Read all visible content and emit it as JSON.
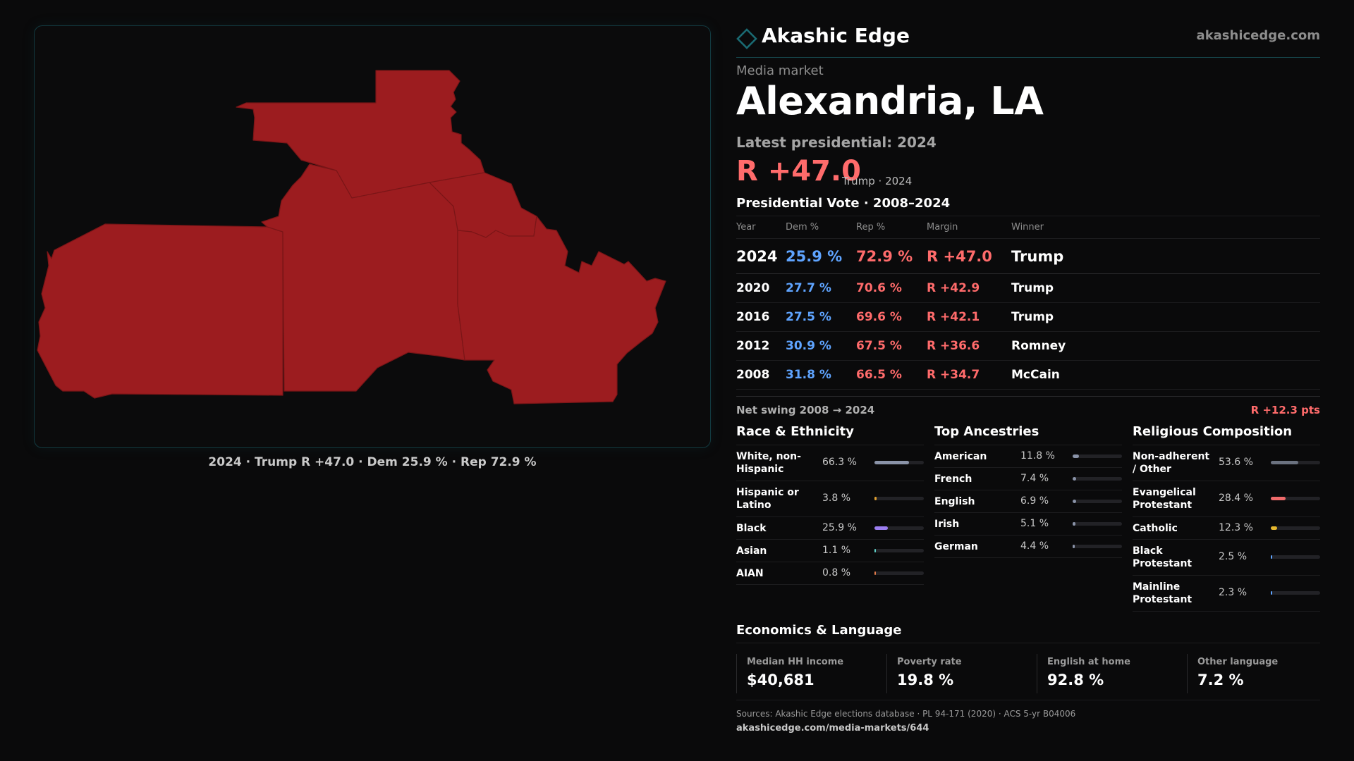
{
  "brand": {
    "name": "Akashic Edge",
    "url": "akashicedge.com"
  },
  "market": {
    "eyebrow": "Media market",
    "title": "Alexandria, LA",
    "latest_label": "Latest presidential: 2024",
    "headline_margin": "R +47.0",
    "headline_sub": "Trump · 2024"
  },
  "map": {
    "caption": "2024 · Trump R +47.0 · Dem 25.9 % · Rep 72.9 %",
    "fill_color": "#9c1c1f"
  },
  "vote": {
    "title": "Presidential Vote · 2008–2024",
    "headers": {
      "year": "Year",
      "dem": "Dem %",
      "rep": "Rep %",
      "margin": "Margin",
      "winner": "Winner"
    },
    "rows": [
      {
        "year": "2024",
        "dem": "25.9 %",
        "rep": "72.9 %",
        "margin": "R +47.0",
        "winner": "Trump"
      },
      {
        "year": "2020",
        "dem": "27.7 %",
        "rep": "70.6 %",
        "margin": "R +42.9",
        "winner": "Trump"
      },
      {
        "year": "2016",
        "dem": "27.5 %",
        "rep": "69.6 %",
        "margin": "R +42.1",
        "winner": "Trump"
      },
      {
        "year": "2012",
        "dem": "30.9 %",
        "rep": "67.5 %",
        "margin": "R +36.6",
        "winner": "Romney"
      },
      {
        "year": "2008",
        "dem": "31.8 %",
        "rep": "66.5 %",
        "margin": "R +34.7",
        "winner": "McCain"
      }
    ],
    "swing_label": "Net swing 2008 → 2024",
    "swing_value": "R +12.3 pts"
  },
  "race": {
    "title": "Race & Ethnicity",
    "items": [
      {
        "label": "White, non-Hispanic",
        "value": "66.3 %",
        "share": 0.663,
        "color": "#8a93a8"
      },
      {
        "label": "Hispanic or Latino",
        "value": "3.8 %",
        "share": 0.038,
        "color": "#e0a030"
      },
      {
        "label": "Black",
        "value": "25.9 %",
        "share": 0.259,
        "color": "#9b7ef0"
      },
      {
        "label": "Asian",
        "value": "1.1 %",
        "share": 0.011,
        "color": "#5fd0c8"
      },
      {
        "label": "AIAN",
        "value": "0.8 %",
        "share": 0.008,
        "color": "#e07a4a"
      }
    ]
  },
  "ancestry": {
    "title": "Top Ancestries",
    "items": [
      {
        "label": "American",
        "value": "11.8 %",
        "share": 0.118,
        "color": "#8a93a8"
      },
      {
        "label": "French",
        "value": "7.4 %",
        "share": 0.074,
        "color": "#8a93a8"
      },
      {
        "label": "English",
        "value": "6.9 %",
        "share": 0.069,
        "color": "#8a93a8"
      },
      {
        "label": "Irish",
        "value": "5.1 %",
        "share": 0.051,
        "color": "#8a93a8"
      },
      {
        "label": "German",
        "value": "4.4 %",
        "share": 0.044,
        "color": "#8a93a8"
      }
    ]
  },
  "religion": {
    "title": "Religious Composition",
    "items": [
      {
        "label": "Non-adherent / Other",
        "value": "53.6 %",
        "share": 0.536,
        "color": "#6b7280"
      },
      {
        "label": "Evangelical Protestant",
        "value": "28.4 %",
        "share": 0.284,
        "color": "#ef6b6b"
      },
      {
        "label": "Catholic",
        "value": "12.3 %",
        "share": 0.123,
        "color": "#e6b82e"
      },
      {
        "label": "Black Protestant",
        "value": "2.5 %",
        "share": 0.025,
        "color": "#5fa4ff"
      },
      {
        "label": "Mainline Protestant",
        "value": "2.3 %",
        "share": 0.023,
        "color": "#5fa4ff"
      }
    ]
  },
  "economics": {
    "title": "Economics & Language",
    "cards": [
      {
        "label": "Median HH income",
        "value": "$40,681"
      },
      {
        "label": "Poverty rate",
        "value": "19.8 %"
      },
      {
        "label": "English at home",
        "value": "92.8 %"
      },
      {
        "label": "Other language",
        "value": "7.2 %"
      }
    ]
  },
  "footer": {
    "sources": "Sources: Akashic Edge elections database · PL 94-171 (2020) · ACS 5-yr B04006",
    "url": "akashicedge.com/media-markets/644"
  }
}
